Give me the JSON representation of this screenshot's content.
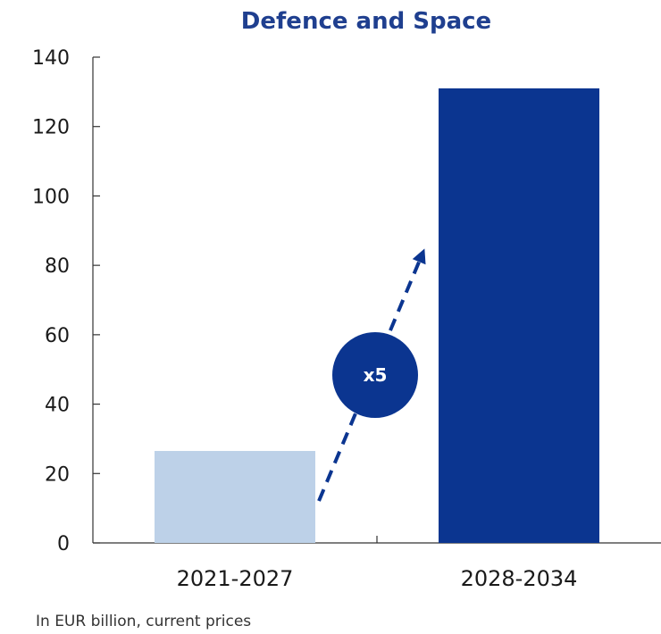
{
  "chart_data": {
    "type": "bar",
    "title": "Defence and Space",
    "categories": [
      "2021-2027",
      "2028-2034"
    ],
    "values": [
      26.5,
      131
    ],
    "bar_colors": [
      "#bdd1e8",
      "#0b3590"
    ],
    "ylim": [
      0,
      140
    ],
    "yticks": [
      0,
      20,
      40,
      60,
      80,
      100,
      120,
      140
    ],
    "xlabel": "",
    "ylabel": "",
    "grid": false,
    "annotation": {
      "label": "x5",
      "color": "#0b3590",
      "style": "dashed-arrow-with-circle"
    },
    "footnote": "In EUR billion, current prices"
  },
  "colors": {
    "title": "#1f3f8f",
    "axis": "#333333"
  }
}
